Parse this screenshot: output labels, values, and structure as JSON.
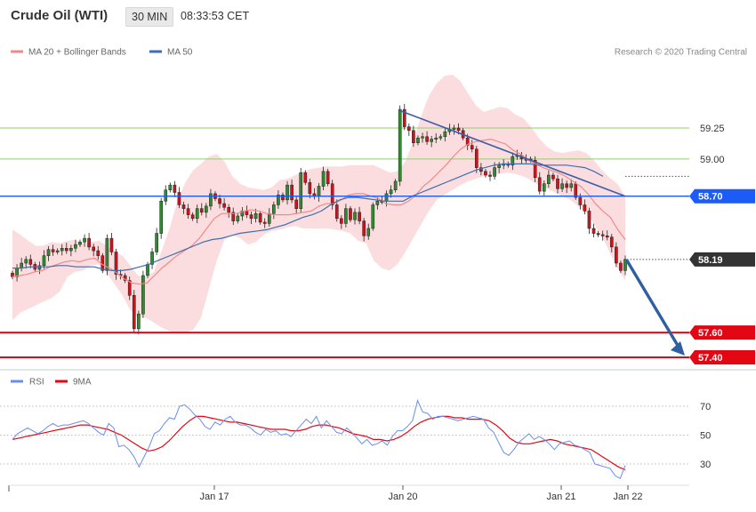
{
  "header": {
    "instrument": "Crude Oil (WTI)",
    "timeframe": "30 MIN",
    "time": "08:33:53 CET"
  },
  "legend": {
    "ma20_bb": "MA 20 + Bollinger Bands",
    "ma50": "MA 50",
    "credit": "Research © 2020 Trading Central"
  },
  "rsi_legend": {
    "rsi": "RSI",
    "ma9": "9MA"
  },
  "colors": {
    "up_candle": "#2e8b2e",
    "down_candle": "#d0121b",
    "bollinger_fill": "#fbd9dc",
    "ma20": "#f08a8a",
    "ma50": "#3b6fb0",
    "resistance": "#1c5bf5",
    "support": "#e30613",
    "fib_lines": "#8fcf6a",
    "current_price": "#333333",
    "rsi_line": "#6a8ee8",
    "rsi_ma": "#e30613",
    "trendline": "#3a5ea8",
    "forecast_arrow": "#2f5fa0"
  },
  "chart_data": [
    {
      "type": "line",
      "subtype": "candlestick",
      "title": "Crude Oil (WTI)",
      "timeframe": "30 MIN",
      "x_ticks": [
        "Jan 17",
        "Jan 20",
        "Jan 21",
        "Jan 22"
      ],
      "y_ticks": [
        59.25,
        59.0
      ],
      "ylim": [
        57.35,
        59.85
      ],
      "levels": [
        {
          "name": "resistance",
          "value": 58.7,
          "label": "58.70"
        },
        {
          "name": "current",
          "value": 58.19,
          "label": "58.19"
        },
        {
          "name": "support_1",
          "value": 57.6,
          "label": "57.60"
        },
        {
          "name": "support_2",
          "value": 57.4,
          "label": "57.40"
        }
      ],
      "closes": [
        58.05,
        58.12,
        58.16,
        58.19,
        58.15,
        58.11,
        58.14,
        58.22,
        58.27,
        58.25,
        58.26,
        58.28,
        58.26,
        58.28,
        58.31,
        58.33,
        58.36,
        58.29,
        58.26,
        58.22,
        58.1,
        58.36,
        58.25,
        58.07,
        58.06,
        58.02,
        57.9,
        57.63,
        57.75,
        58.06,
        58.15,
        58.25,
        58.4,
        58.66,
        58.75,
        58.79,
        58.73,
        58.63,
        58.6,
        58.55,
        58.52,
        58.6,
        58.57,
        58.62,
        58.72,
        58.68,
        58.64,
        58.61,
        58.57,
        58.5,
        58.54,
        58.58,
        58.55,
        58.52,
        58.56,
        58.49,
        58.48,
        58.56,
        58.63,
        58.71,
        58.67,
        58.79,
        58.67,
        58.6,
        58.89,
        58.81,
        58.72,
        58.7,
        58.78,
        58.9,
        58.8,
        58.63,
        58.52,
        58.48,
        58.6,
        58.51,
        58.57,
        58.5,
        58.38,
        58.44,
        58.63,
        58.66,
        58.66,
        58.72,
        58.75,
        58.82,
        59.4,
        59.26,
        59.23,
        59.13,
        59.17,
        59.18,
        59.14,
        59.16,
        59.17,
        59.18,
        59.22,
        59.24,
        59.25,
        59.23,
        59.17,
        59.11,
        59.08,
        58.93,
        58.9,
        58.87,
        58.86,
        58.93,
        58.95,
        58.96,
        58.95,
        59.02,
        59.03,
        59.0,
        59.0,
        58.99,
        58.85,
        58.74,
        58.8,
        58.87,
        58.84,
        58.76,
        58.8,
        58.77,
        58.8,
        58.69,
        58.63,
        58.58,
        58.44,
        58.4,
        58.39,
        58.38,
        58.37,
        58.29,
        58.16,
        58.1,
        58.19
      ],
      "series": [
        {
          "name": "MA 20",
          "values": [
            58.05,
            58.06,
            58.07,
            58.09,
            58.1,
            58.13,
            58.15,
            58.17,
            58.18,
            58.17,
            58.19,
            58.2,
            58.15,
            58.12,
            58.08,
            58.03,
            58.0,
            57.99,
            58.0,
            58.06,
            58.12,
            58.17,
            58.22,
            58.26,
            58.3,
            58.36,
            58.44,
            58.52,
            58.56,
            58.56,
            58.56,
            58.58,
            58.59,
            58.58,
            58.56,
            58.55,
            58.55,
            58.55,
            58.56,
            58.57,
            58.58,
            58.62,
            58.64,
            58.64,
            58.67,
            58.71,
            58.72,
            58.72,
            58.7,
            58.68,
            58.64,
            58.63,
            58.63,
            58.66,
            58.71,
            58.78,
            58.83,
            58.89,
            58.95,
            59.02,
            59.08,
            59.12,
            59.14,
            59.15,
            59.16,
            59.14,
            59.12,
            59.07,
            59.04,
            58.99,
            58.96,
            58.93,
            58.91,
            58.89,
            58.86,
            58.82,
            58.78,
            58.72,
            58.64,
            58.58,
            58.53,
            58.43,
            58.35
          ]
        },
        {
          "name": "MA 50",
          "values": [
            58.12,
            58.12,
            58.13,
            58.13,
            58.13,
            58.14,
            58.14,
            58.13,
            58.13,
            58.13,
            58.11,
            58.1,
            58.1,
            58.11,
            58.13,
            58.15,
            58.18,
            58.21,
            58.24,
            58.27,
            58.3,
            58.33,
            58.35,
            58.36,
            58.38,
            58.4,
            58.41,
            58.42,
            58.43,
            58.45,
            58.47,
            58.5,
            58.53,
            58.55,
            58.58,
            58.63,
            58.67,
            58.69,
            58.69,
            58.68,
            58.67,
            58.66,
            58.66,
            58.66,
            58.7,
            58.73,
            58.76,
            58.79,
            58.82,
            58.85,
            58.88,
            58.91,
            58.93,
            58.95,
            58.96,
            58.96,
            58.96,
            58.96,
            58.95,
            58.95,
            58.95,
            58.95,
            58.94,
            58.93,
            58.9,
            58.86
          ]
        },
        {
          "name": "Bollinger upper",
          "values": [
            58.43,
            58.39,
            58.34,
            58.3,
            58.3,
            58.33,
            58.32,
            58.34,
            58.35,
            58.32,
            58.33,
            58.34,
            58.3,
            58.25,
            58.22,
            58.14,
            58.06,
            58.05,
            58.09,
            58.26,
            58.44,
            58.66,
            58.81,
            58.91,
            58.96,
            59.02,
            59.04,
            58.98,
            58.86,
            58.8,
            58.77,
            58.76,
            58.75,
            58.77,
            58.83,
            58.84,
            58.87,
            58.9,
            58.92,
            58.93,
            58.94,
            58.94,
            58.94,
            58.95,
            58.95,
            58.95,
            58.95,
            58.92,
            58.89,
            58.9,
            58.98,
            59.14,
            59.34,
            59.51,
            59.61,
            59.67,
            59.68,
            59.63,
            59.53,
            59.43,
            59.38,
            59.4,
            59.42,
            59.41,
            59.36,
            59.33,
            59.26,
            59.17,
            59.1,
            59.06,
            59.05,
            59.06,
            59.07,
            59.05,
            58.99,
            58.91,
            58.85,
            58.8,
            58.7
          ]
        },
        {
          "name": "Bollinger lower",
          "values": [
            57.7,
            57.76,
            57.79,
            57.82,
            57.85,
            57.88,
            57.93,
            58.05,
            58.09,
            58.1,
            58.14,
            58.15,
            58.08,
            57.99,
            57.9,
            57.78,
            57.72,
            57.72,
            57.68,
            57.64,
            57.61,
            57.6,
            57.6,
            57.62,
            57.72,
            57.95,
            58.18,
            58.35,
            58.39,
            58.36,
            58.31,
            58.33,
            58.39,
            58.42,
            58.43,
            58.45,
            58.46,
            58.44,
            58.44,
            58.44,
            58.44,
            58.43,
            58.42,
            58.4,
            58.34,
            58.32,
            58.18,
            58.12,
            58.1,
            58.15,
            58.25,
            58.36,
            58.47,
            58.58,
            58.67,
            58.71,
            58.75,
            58.79,
            58.82,
            58.84,
            58.86,
            58.87,
            58.88,
            58.89,
            58.88,
            58.86,
            58.83,
            58.79,
            58.76,
            58.73,
            58.7,
            58.67,
            58.62,
            58.57,
            58.48,
            58.38,
            58.25,
            58.12,
            58.02
          ]
        }
      ],
      "grid": false,
      "legend_position": "top-left"
    },
    {
      "type": "line",
      "title": "RSI",
      "y_ticks": [
        70,
        50,
        30
      ],
      "ylim": [
        18,
        80
      ],
      "series": [
        {
          "name": "RSI",
          "values": [
            47,
            51,
            53,
            55,
            53,
            51,
            53,
            56,
            58,
            56,
            57,
            57,
            58,
            59,
            60,
            58,
            55,
            52,
            50,
            58,
            55,
            42,
            43,
            40,
            35,
            28,
            35,
            42,
            51,
            53,
            58,
            62,
            61,
            70,
            71,
            68,
            64,
            61,
            56,
            54,
            59,
            57,
            61,
            63,
            59,
            57,
            57,
            55,
            52,
            50,
            54,
            52,
            53,
            50,
            51,
            49,
            53,
            57,
            61,
            58,
            63,
            55,
            60,
            56,
            52,
            51,
            55,
            52,
            48,
            44,
            47,
            43,
            44,
            46,
            43,
            49,
            53,
            53,
            56,
            60,
            74,
            66,
            65,
            61,
            63,
            63,
            62,
            61,
            60,
            61,
            62,
            63,
            62,
            61,
            55,
            52,
            45,
            38,
            36,
            40,
            45,
            48,
            51,
            47,
            49,
            47,
            44,
            40,
            44,
            45,
            46,
            43,
            42,
            40,
            38,
            30,
            29,
            28,
            27,
            22,
            20,
            29
          ]
        },
        {
          "name": "9MA",
          "values": [
            47,
            48,
            49,
            50,
            51,
            52,
            53,
            54,
            55,
            56,
            57,
            57,
            56,
            55,
            54,
            52,
            50,
            47,
            44,
            41,
            39,
            40,
            42,
            46,
            51,
            56,
            60,
            63,
            63,
            62,
            61,
            60,
            59,
            59,
            58,
            57,
            56,
            55,
            54,
            54,
            54,
            53,
            53,
            54,
            56,
            57,
            57,
            56,
            55,
            53,
            51,
            50,
            49,
            47,
            47,
            46,
            47,
            49,
            52,
            56,
            59,
            61,
            62,
            63,
            63,
            62,
            62,
            61,
            61,
            61,
            60,
            57,
            53,
            48,
            45,
            44,
            44,
            45,
            46,
            47,
            46,
            44,
            43,
            42,
            41,
            40,
            37,
            34,
            31,
            28,
            26
          ]
        }
      ],
      "grid": false,
      "legend_position": "top-left"
    }
  ]
}
